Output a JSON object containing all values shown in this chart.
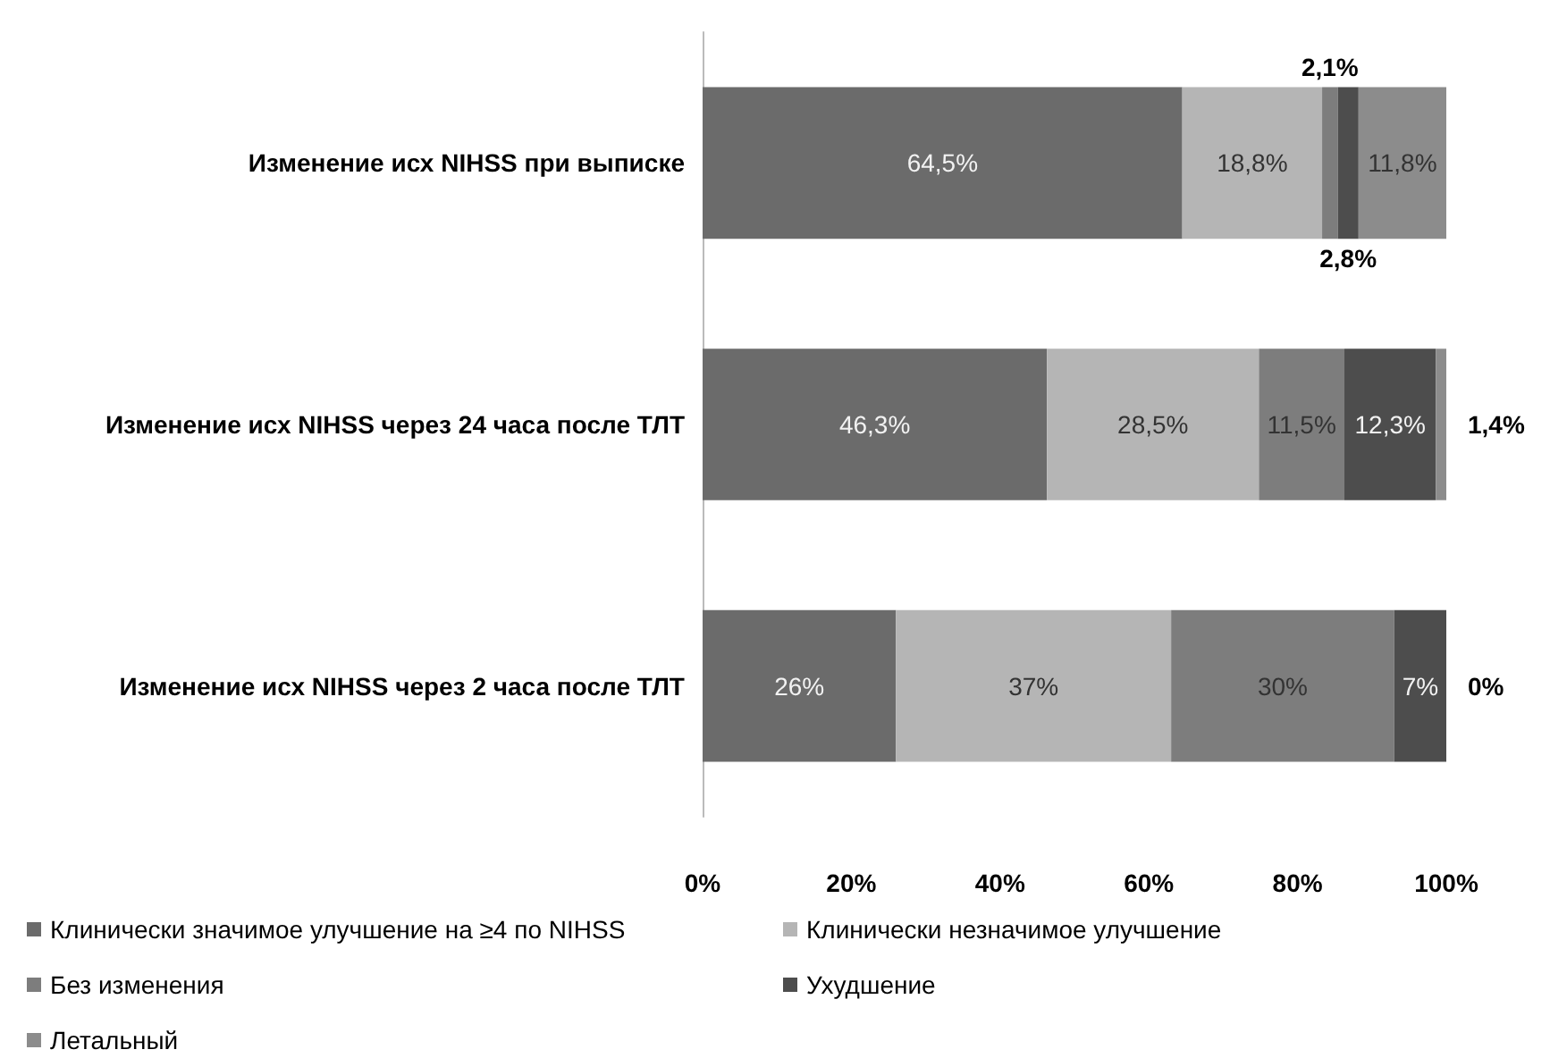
{
  "chart_data": {
    "type": "bar",
    "orientation": "horizontal",
    "stacked": true,
    "categories": [
      "Изменение исх NIHSS при выписке",
      "Изменение исх NIHSS через 24 часа после ТЛТ",
      "Изменение исх NIHSS через 2 часа после ТЛТ"
    ],
    "series": [
      {
        "name": "Клинически значимое улучшение на ≥4 по NIHSS",
        "color": "#6b6b6b",
        "values": [
          64.5,
          46.3,
          26
        ],
        "value_labels": [
          "64,5%",
          "46,3%",
          "26%"
        ]
      },
      {
        "name": "Клинически незначимое улучшение",
        "color": "#b5b5b5",
        "values": [
          18.8,
          28.5,
          37
        ],
        "value_labels": [
          "18,8%",
          "28,5%",
          "37%"
        ]
      },
      {
        "name": "Без изменения",
        "color": "#7d7d7d",
        "values": [
          2.1,
          11.5,
          30
        ],
        "value_labels": [
          "2,1%",
          "11,5%",
          "30%"
        ]
      },
      {
        "name": "Ухудшение",
        "color": "#4d4d4d",
        "values": [
          2.8,
          12.3,
          7
        ],
        "value_labels": [
          "2,8%",
          "12,3%",
          "7%"
        ]
      },
      {
        "name": "Летальный",
        "color": "#8c8c8c",
        "values": [
          11.8,
          1.4,
          0
        ],
        "value_labels": [
          "11,8%",
          "1,4%",
          "0%"
        ]
      }
    ],
    "xlim": [
      0,
      100
    ],
    "xticks": [
      {
        "value": 0,
        "label": "0%"
      },
      {
        "value": 20,
        "label": "20%"
      },
      {
        "value": 40,
        "label": "40%"
      },
      {
        "value": 60,
        "label": "60%"
      },
      {
        "value": 80,
        "label": "80%"
      },
      {
        "value": 100,
        "label": "100%"
      }
    ],
    "grid": false,
    "legend": "bottom"
  }
}
